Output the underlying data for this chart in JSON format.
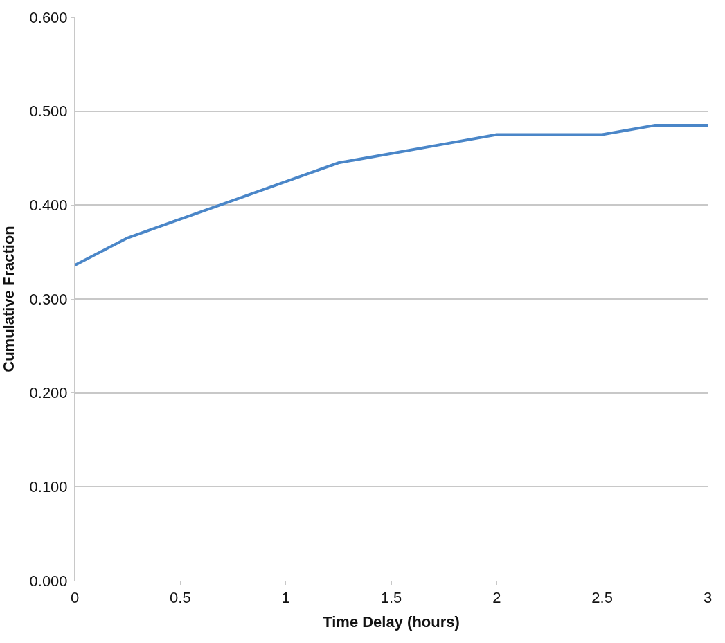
{
  "chart_data": {
    "type": "line",
    "xlabel": "Time Delay (hours)",
    "ylabel": "Cumulative Fraction",
    "x": [
      0,
      0.25,
      0.5,
      0.75,
      1,
      1.25,
      1.5,
      1.75,
      2,
      2.25,
      2.5,
      2.75,
      3
    ],
    "series": [
      {
        "color": "#4a86c8",
        "values": [
          0.336,
          0.365,
          0.385,
          0.405,
          0.425,
          0.445,
          0.455,
          0.465,
          0.475,
          0.475,
          0.475,
          0.485,
          0.485
        ]
      }
    ],
    "xlim": [
      0,
      3
    ],
    "xticks": [
      0,
      0.5,
      1,
      1.5,
      2,
      2.5,
      3
    ],
    "ylim": [
      0,
      0.6
    ],
    "yticks": [
      {
        "value": 0,
        "label": "0.000"
      },
      {
        "value": 0.1,
        "label": "0.100"
      },
      {
        "value": 0.2,
        "label": "0.200"
      },
      {
        "value": 0.3,
        "label": "0.300"
      },
      {
        "value": 0.4,
        "label": "0.400"
      },
      {
        "value": 0.5,
        "label": "0.500"
      },
      {
        "value": 0.6,
        "label": "0.600"
      }
    ],
    "grid": "y",
    "line_style": "solid"
  }
}
